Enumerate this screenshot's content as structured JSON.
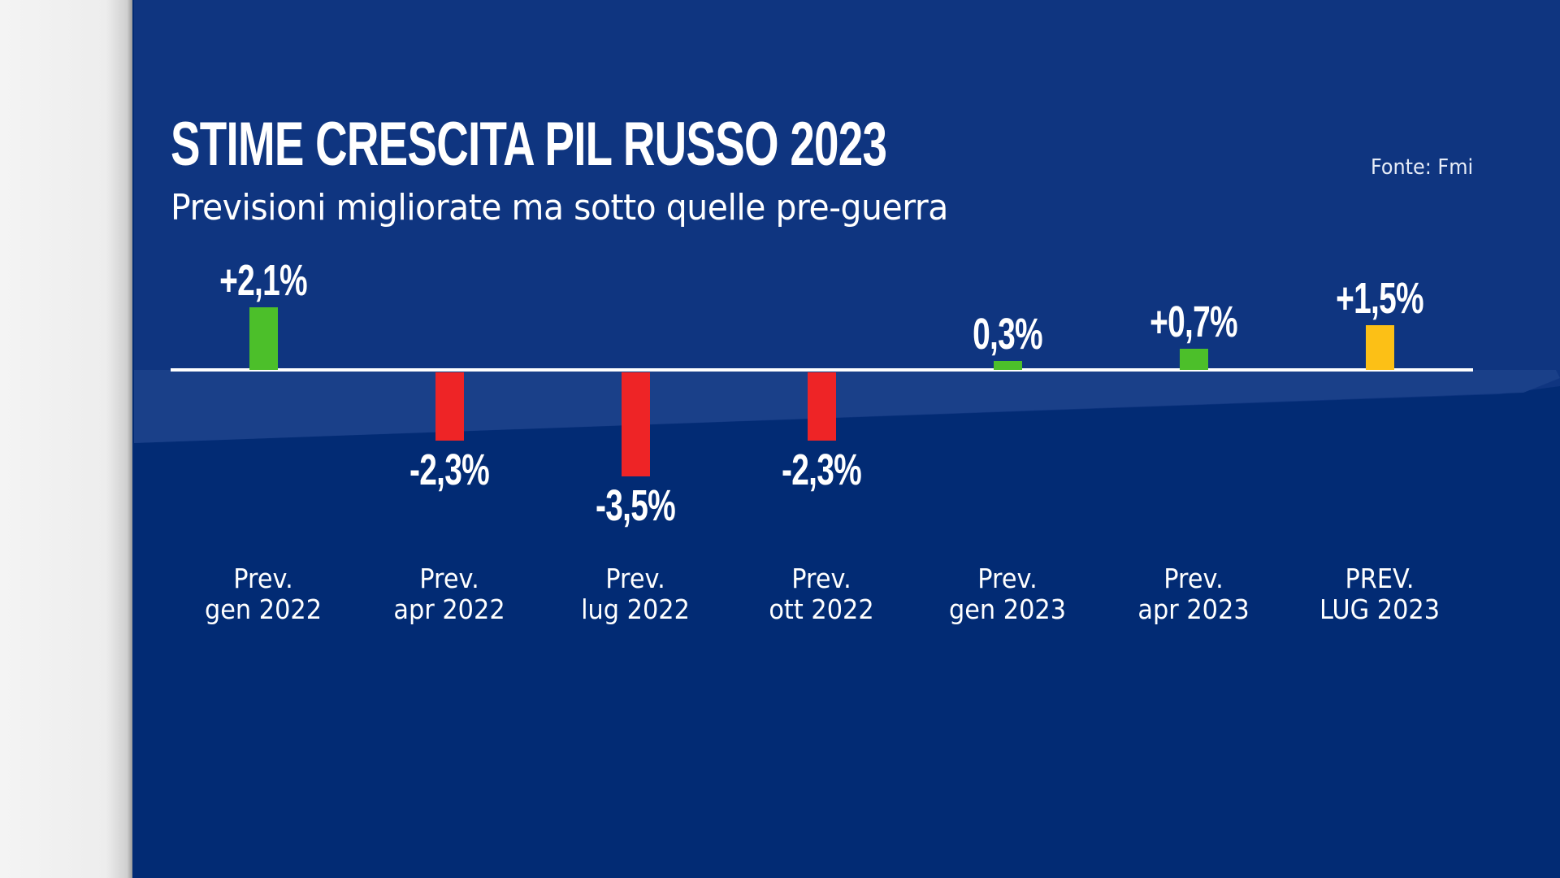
{
  "header": {
    "title": "STIME CRESCITA PIL RUSSO 2023",
    "subtitle": "Previsioni migliorate ma sotto quelle pre-guerra",
    "source": "Fonte: Fmi"
  },
  "colors": {
    "background": "#022b74",
    "background_top": "#0f3580",
    "positive": "#4cbf2a",
    "negative": "#ee2426",
    "highlight": "#fcc016",
    "text": "#ffffff"
  },
  "bars": [
    {
      "line1": "Prev.",
      "line2": "gen 2022",
      "label": "+2,1%",
      "value": 2.1
    },
    {
      "line1": "Prev.",
      "line2": "apr 2022",
      "label": "-2,3%",
      "value": -2.3
    },
    {
      "line1": "Prev.",
      "line2": "lug 2022",
      "label": "-3,5%",
      "value": -3.5
    },
    {
      "line1": "Prev.",
      "line2": "ott 2022",
      "label": "-2,3%",
      "value": -2.3
    },
    {
      "line1": "Prev.",
      "line2": "gen 2023",
      "label": "0,3%",
      "value": 0.3
    },
    {
      "line1": "Prev.",
      "line2": "apr 2023",
      "label": "+0,7%",
      "value": 0.7
    },
    {
      "line1": "PREV.",
      "line2": "LUG 2023",
      "label": "+1,5%",
      "value": 1.5
    }
  ],
  "chart_data": {
    "type": "bar",
    "title": "STIME CRESCITA PIL RUSSO 2023",
    "subtitle": "Previsioni migliorate ma sotto quelle pre-guerra",
    "source": "Fonte: Fmi",
    "categories": [
      "Prev. gen 2022",
      "Prev. apr 2022",
      "Prev. lug 2022",
      "Prev. ott 2022",
      "Prev. gen 2023",
      "Prev. apr 2023",
      "PREV. LUG 2023"
    ],
    "values": [
      2.1,
      -2.3,
      -3.5,
      -2.3,
      0.3,
      0.7,
      1.5
    ],
    "data_labels": [
      "+2,1%",
      "-2,3%",
      "-3,5%",
      "-2,3%",
      "0,3%",
      "+0,7%",
      "+1,5%"
    ],
    "bar_colors": [
      "#4cbf2a",
      "#ee2426",
      "#ee2426",
      "#ee2426",
      "#4cbf2a",
      "#4cbf2a",
      "#fcc016"
    ],
    "xlabel": "",
    "ylabel": "",
    "unit": "%",
    "ylim": [
      -3.5,
      2.1
    ],
    "grid": false,
    "zero_line": true,
    "legend": null
  }
}
